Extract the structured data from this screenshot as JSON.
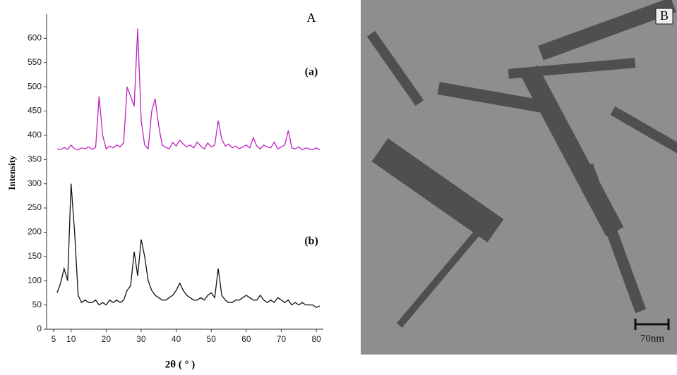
{
  "chart_data": {
    "type": "line",
    "panel_label": "A",
    "ylabel": "Intensity",
    "xlabel": "2θ ( ° )",
    "xlim": [
      3,
      82
    ],
    "ylim": [
      0,
      650
    ],
    "xticks": [
      5,
      10,
      20,
      30,
      40,
      50,
      60,
      70,
      80
    ],
    "yticks": [
      0,
      50,
      100,
      150,
      200,
      250,
      300,
      350,
      400,
      450,
      500,
      550,
      600
    ],
    "x": [
      6,
      7,
      8,
      9,
      10,
      11,
      12,
      13,
      14,
      15,
      16,
      17,
      18,
      19,
      20,
      21,
      22,
      23,
      24,
      25,
      26,
      27,
      28,
      29,
      30,
      31,
      32,
      33,
      34,
      35,
      36,
      37,
      38,
      39,
      40,
      41,
      42,
      43,
      44,
      45,
      46,
      47,
      48,
      49,
      50,
      51,
      52,
      53,
      54,
      55,
      56,
      57,
      58,
      59,
      60,
      61,
      62,
      63,
      64,
      65,
      66,
      67,
      68,
      69,
      70,
      71,
      72,
      73,
      74,
      75,
      76,
      77,
      78,
      79,
      80,
      81
    ],
    "series": [
      {
        "name": "(a)",
        "color": "#c020c0",
        "values": [
          372,
          370,
          375,
          371,
          380,
          372,
          370,
          374,
          372,
          376,
          371,
          375,
          480,
          400,
          372,
          378,
          374,
          380,
          376,
          385,
          500,
          480,
          460,
          620,
          430,
          380,
          372,
          450,
          475,
          420,
          380,
          375,
          372,
          385,
          378,
          390,
          382,
          376,
          380,
          374,
          386,
          378,
          372,
          384,
          376,
          380,
          430,
          392,
          378,
          382,
          374,
          378,
          372,
          376,
          380,
          374,
          395,
          378,
          372,
          380,
          376,
          374,
          386,
          372,
          376,
          380,
          410,
          374,
          372,
          376,
          370,
          374,
          372,
          370,
          374,
          370
        ]
      },
      {
        "name": "(b)",
        "color": "#111111",
        "values": [
          75,
          95,
          125,
          100,
          300,
          200,
          70,
          55,
          60,
          55,
          55,
          60,
          50,
          55,
          50,
          60,
          55,
          60,
          55,
          60,
          80,
          90,
          160,
          110,
          185,
          150,
          100,
          80,
          70,
          65,
          60,
          60,
          65,
          70,
          80,
          95,
          80,
          70,
          65,
          60,
          60,
          65,
          60,
          70,
          75,
          65,
          125,
          70,
          60,
          55,
          55,
          60,
          60,
          65,
          70,
          65,
          60,
          60,
          70,
          60,
          55,
          60,
          55,
          65,
          60,
          55,
          60,
          50,
          55,
          50,
          55,
          50,
          50,
          50,
          45,
          48
        ]
      }
    ]
  },
  "image_panel": {
    "label": "B",
    "scale_bar": "70nm"
  }
}
